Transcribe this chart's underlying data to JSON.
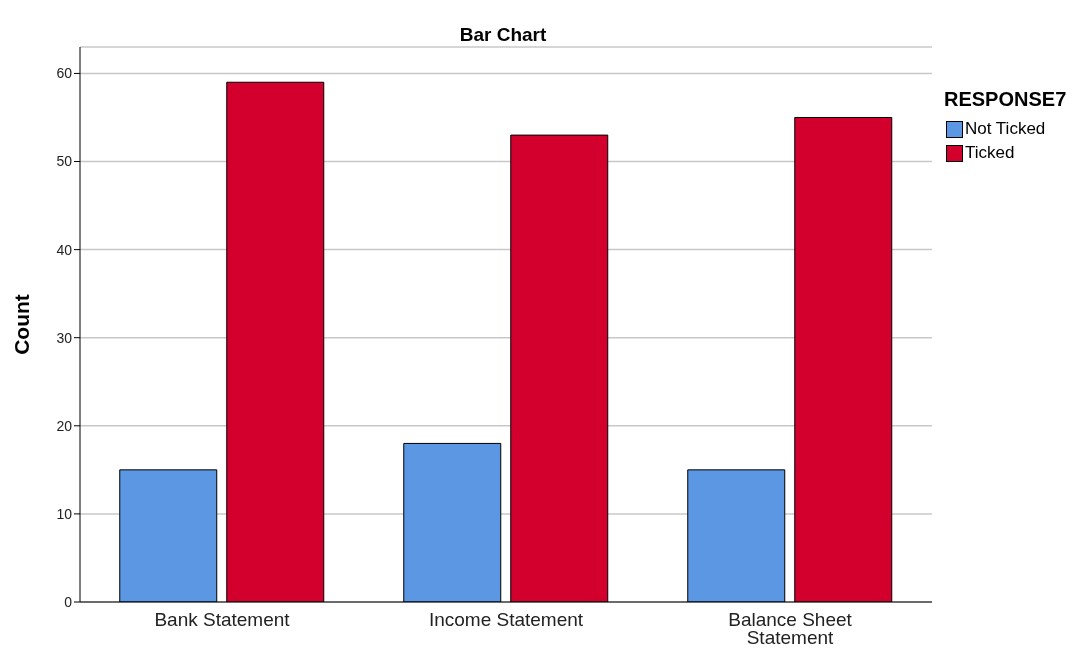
{
  "chart_data": {
    "type": "bar",
    "title": "Bar Chart",
    "ylabel": "Count",
    "legend_title": "RESPONSE7",
    "categories": [
      "Bank Statement",
      "Income Statement",
      "Balance Sheet Statement"
    ],
    "series": [
      {
        "name": "Not Ticked",
        "color": "#5b97e2",
        "values": [
          15,
          18,
          15
        ]
      },
      {
        "name": "Ticked",
        "color": "#d3002e",
        "values": [
          59,
          53,
          55
        ]
      }
    ],
    "ylim": [
      0,
      63
    ],
    "yticks": [
      0,
      10,
      20,
      30,
      40,
      50,
      60
    ],
    "grid": "y",
    "legend": "top right"
  }
}
